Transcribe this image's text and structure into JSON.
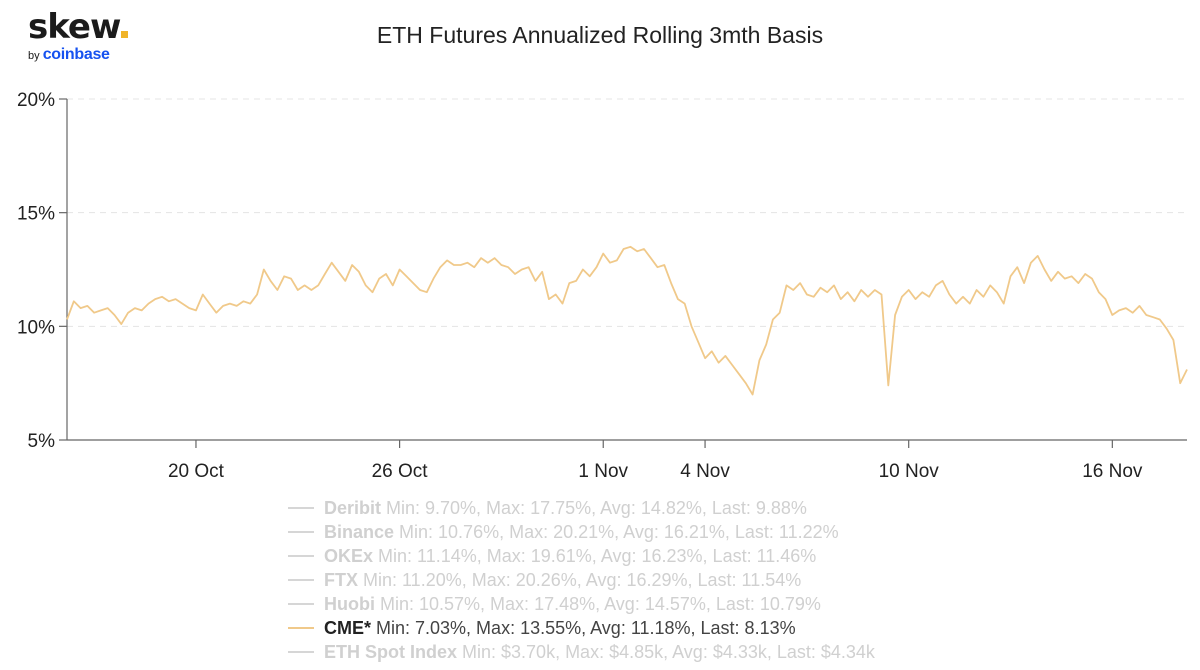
{
  "brand": {
    "name": "skew",
    "by": "by",
    "company": "coinbase"
  },
  "chart_data": {
    "type": "line",
    "title": "ETH Futures Annualized Rolling 3mth Basis",
    "ylim": [
      5,
      20
    ],
    "yticks": [
      5,
      10,
      15,
      20
    ],
    "ytick_labels": [
      "5%",
      "10%",
      "15%",
      "20%"
    ],
    "xlim": [
      15.2,
      48.2
    ],
    "xticks": [
      {
        "value": 19,
        "label": "20 Oct"
      },
      {
        "value": 25,
        "label": "26 Oct"
      },
      {
        "value": 31,
        "label": "1 Nov"
      },
      {
        "value": 34,
        "label": "4 Nov"
      },
      {
        "value": 40,
        "label": "10 Nov"
      },
      {
        "value": 46,
        "label": "16 Nov"
      }
    ],
    "x_unit": "day number where 1 Oct = 0",
    "grid": "horizontal dashed",
    "series": [
      {
        "name": "CME*",
        "color": "#f0c98a",
        "visible": true,
        "points": [
          [
            15.2,
            10.3
          ],
          [
            15.4,
            11.1
          ],
          [
            15.6,
            10.8
          ],
          [
            15.8,
            10.9
          ],
          [
            16.0,
            10.6
          ],
          [
            16.2,
            10.7
          ],
          [
            16.4,
            10.8
          ],
          [
            16.6,
            10.5
          ],
          [
            16.8,
            10.1
          ],
          [
            17.0,
            10.6
          ],
          [
            17.2,
            10.8
          ],
          [
            17.4,
            10.7
          ],
          [
            17.6,
            11.0
          ],
          [
            17.8,
            11.2
          ],
          [
            18.0,
            11.3
          ],
          [
            18.2,
            11.1
          ],
          [
            18.4,
            11.2
          ],
          [
            18.6,
            11.0
          ],
          [
            18.8,
            10.8
          ],
          [
            19.0,
            10.7
          ],
          [
            19.2,
            11.4
          ],
          [
            19.4,
            11.0
          ],
          [
            19.6,
            10.6
          ],
          [
            19.8,
            10.9
          ],
          [
            20.0,
            11.0
          ],
          [
            20.2,
            10.9
          ],
          [
            20.4,
            11.1
          ],
          [
            20.6,
            11.0
          ],
          [
            20.8,
            11.4
          ],
          [
            21.0,
            12.5
          ],
          [
            21.2,
            12.0
          ],
          [
            21.4,
            11.6
          ],
          [
            21.6,
            12.2
          ],
          [
            21.8,
            12.1
          ],
          [
            22.0,
            11.6
          ],
          [
            22.2,
            11.8
          ],
          [
            22.4,
            11.6
          ],
          [
            22.6,
            11.8
          ],
          [
            22.8,
            12.3
          ],
          [
            23.0,
            12.8
          ],
          [
            23.2,
            12.4
          ],
          [
            23.4,
            12.0
          ],
          [
            23.6,
            12.7
          ],
          [
            23.8,
            12.4
          ],
          [
            24.0,
            11.8
          ],
          [
            24.2,
            11.5
          ],
          [
            24.4,
            12.1
          ],
          [
            24.6,
            12.3
          ],
          [
            24.8,
            11.8
          ],
          [
            25.0,
            12.5
          ],
          [
            25.2,
            12.2
          ],
          [
            25.4,
            11.9
          ],
          [
            25.6,
            11.6
          ],
          [
            25.8,
            11.5
          ],
          [
            26.0,
            12.1
          ],
          [
            26.2,
            12.6
          ],
          [
            26.4,
            12.9
          ],
          [
            26.6,
            12.7
          ],
          [
            26.8,
            12.7
          ],
          [
            27.0,
            12.8
          ],
          [
            27.2,
            12.6
          ],
          [
            27.4,
            13.0
          ],
          [
            27.6,
            12.8
          ],
          [
            27.8,
            13.0
          ],
          [
            28.0,
            12.7
          ],
          [
            28.2,
            12.6
          ],
          [
            28.4,
            12.3
          ],
          [
            28.6,
            12.5
          ],
          [
            28.8,
            12.6
          ],
          [
            29.0,
            12.0
          ],
          [
            29.2,
            12.4
          ],
          [
            29.4,
            11.2
          ],
          [
            29.6,
            11.4
          ],
          [
            29.8,
            11.0
          ],
          [
            30.0,
            11.9
          ],
          [
            30.2,
            12.0
          ],
          [
            30.4,
            12.5
          ],
          [
            30.6,
            12.2
          ],
          [
            30.8,
            12.6
          ],
          [
            31.0,
            13.2
          ],
          [
            31.2,
            12.8
          ],
          [
            31.4,
            12.9
          ],
          [
            31.6,
            13.4
          ],
          [
            31.8,
            13.5
          ],
          [
            32.0,
            13.3
          ],
          [
            32.2,
            13.4
          ],
          [
            32.4,
            13.0
          ],
          [
            32.6,
            12.6
          ],
          [
            32.8,
            12.7
          ],
          [
            33.0,
            11.9
          ],
          [
            33.2,
            11.2
          ],
          [
            33.4,
            11.0
          ],
          [
            33.6,
            10.0
          ],
          [
            33.8,
            9.3
          ],
          [
            34.0,
            8.6
          ],
          [
            34.2,
            8.9
          ],
          [
            34.4,
            8.4
          ],
          [
            34.6,
            8.7
          ],
          [
            34.8,
            8.3
          ],
          [
            35.0,
            7.9
          ],
          [
            35.2,
            7.5
          ],
          [
            35.4,
            7.0
          ],
          [
            35.6,
            8.5
          ],
          [
            35.8,
            9.2
          ],
          [
            36.0,
            10.3
          ],
          [
            36.2,
            10.6
          ],
          [
            36.4,
            11.8
          ],
          [
            36.6,
            11.6
          ],
          [
            36.8,
            11.9
          ],
          [
            37.0,
            11.4
          ],
          [
            37.2,
            11.3
          ],
          [
            37.4,
            11.7
          ],
          [
            37.6,
            11.5
          ],
          [
            37.8,
            11.8
          ],
          [
            38.0,
            11.2
          ],
          [
            38.2,
            11.5
          ],
          [
            38.4,
            11.1
          ],
          [
            38.6,
            11.6
          ],
          [
            38.8,
            11.3
          ],
          [
            39.0,
            11.6
          ],
          [
            39.2,
            11.4
          ],
          [
            39.4,
            7.4
          ],
          [
            39.6,
            10.5
          ],
          [
            39.8,
            11.3
          ],
          [
            40.0,
            11.6
          ],
          [
            40.2,
            11.2
          ],
          [
            40.4,
            11.5
          ],
          [
            40.6,
            11.3
          ],
          [
            40.8,
            11.8
          ],
          [
            41.0,
            12.0
          ],
          [
            41.2,
            11.4
          ],
          [
            41.4,
            11.0
          ],
          [
            41.6,
            11.3
          ],
          [
            41.8,
            11.0
          ],
          [
            42.0,
            11.6
          ],
          [
            42.2,
            11.3
          ],
          [
            42.4,
            11.8
          ],
          [
            42.6,
            11.5
          ],
          [
            42.8,
            11.0
          ],
          [
            43.0,
            12.2
          ],
          [
            43.2,
            12.6
          ],
          [
            43.4,
            11.9
          ],
          [
            43.6,
            12.8
          ],
          [
            43.8,
            13.1
          ],
          [
            44.0,
            12.5
          ],
          [
            44.2,
            12.0
          ],
          [
            44.4,
            12.4
          ],
          [
            44.6,
            12.1
          ],
          [
            44.8,
            12.2
          ],
          [
            45.0,
            11.9
          ],
          [
            45.2,
            12.3
          ],
          [
            45.4,
            12.1
          ],
          [
            45.6,
            11.5
          ],
          [
            45.8,
            11.2
          ],
          [
            46.0,
            10.5
          ],
          [
            46.2,
            10.7
          ],
          [
            46.4,
            10.8
          ],
          [
            46.6,
            10.6
          ],
          [
            46.8,
            10.9
          ],
          [
            47.0,
            10.5
          ],
          [
            47.2,
            10.4
          ],
          [
            47.4,
            10.3
          ],
          [
            47.6,
            9.9
          ],
          [
            47.8,
            9.4
          ],
          [
            48.0,
            7.5
          ],
          [
            48.2,
            8.1
          ]
        ]
      }
    ]
  },
  "legend": [
    {
      "name": "Deribit",
      "stats": "Min: 9.70%, Max: 17.75%, Avg: 14.82%, Last: 9.88%",
      "active": false
    },
    {
      "name": "Binance",
      "stats": "Min: 10.76%, Max: 20.21%, Avg: 16.21%, Last: 11.22%",
      "active": false
    },
    {
      "name": "OKEx",
      "stats": "Min: 11.14%, Max: 19.61%, Avg: 16.23%, Last: 11.46%",
      "active": false
    },
    {
      "name": "FTX",
      "stats": "Min: 11.20%, Max: 20.26%, Avg: 16.29%, Last: 11.54%",
      "active": false
    },
    {
      "name": "Huobi",
      "stats": "Min: 10.57%, Max: 17.48%, Avg: 14.57%, Last: 10.79%",
      "active": false
    },
    {
      "name": "CME*",
      "stats": "Min: 7.03%, Max: 13.55%, Avg: 11.18%, Last: 8.13%",
      "active": true
    },
    {
      "name": "ETH Spot Index",
      "stats": "Min: $3.70k, Max: $4.85k, Avg: $4.33k, Last: $4.34k",
      "active": false
    }
  ],
  "colors": {
    "active_series": "#f0c98a",
    "inactive": "#d6d6d6",
    "grid": "#e4e4e4",
    "brand_accent": "#f0b429",
    "brand_blue": "#1652f0"
  }
}
